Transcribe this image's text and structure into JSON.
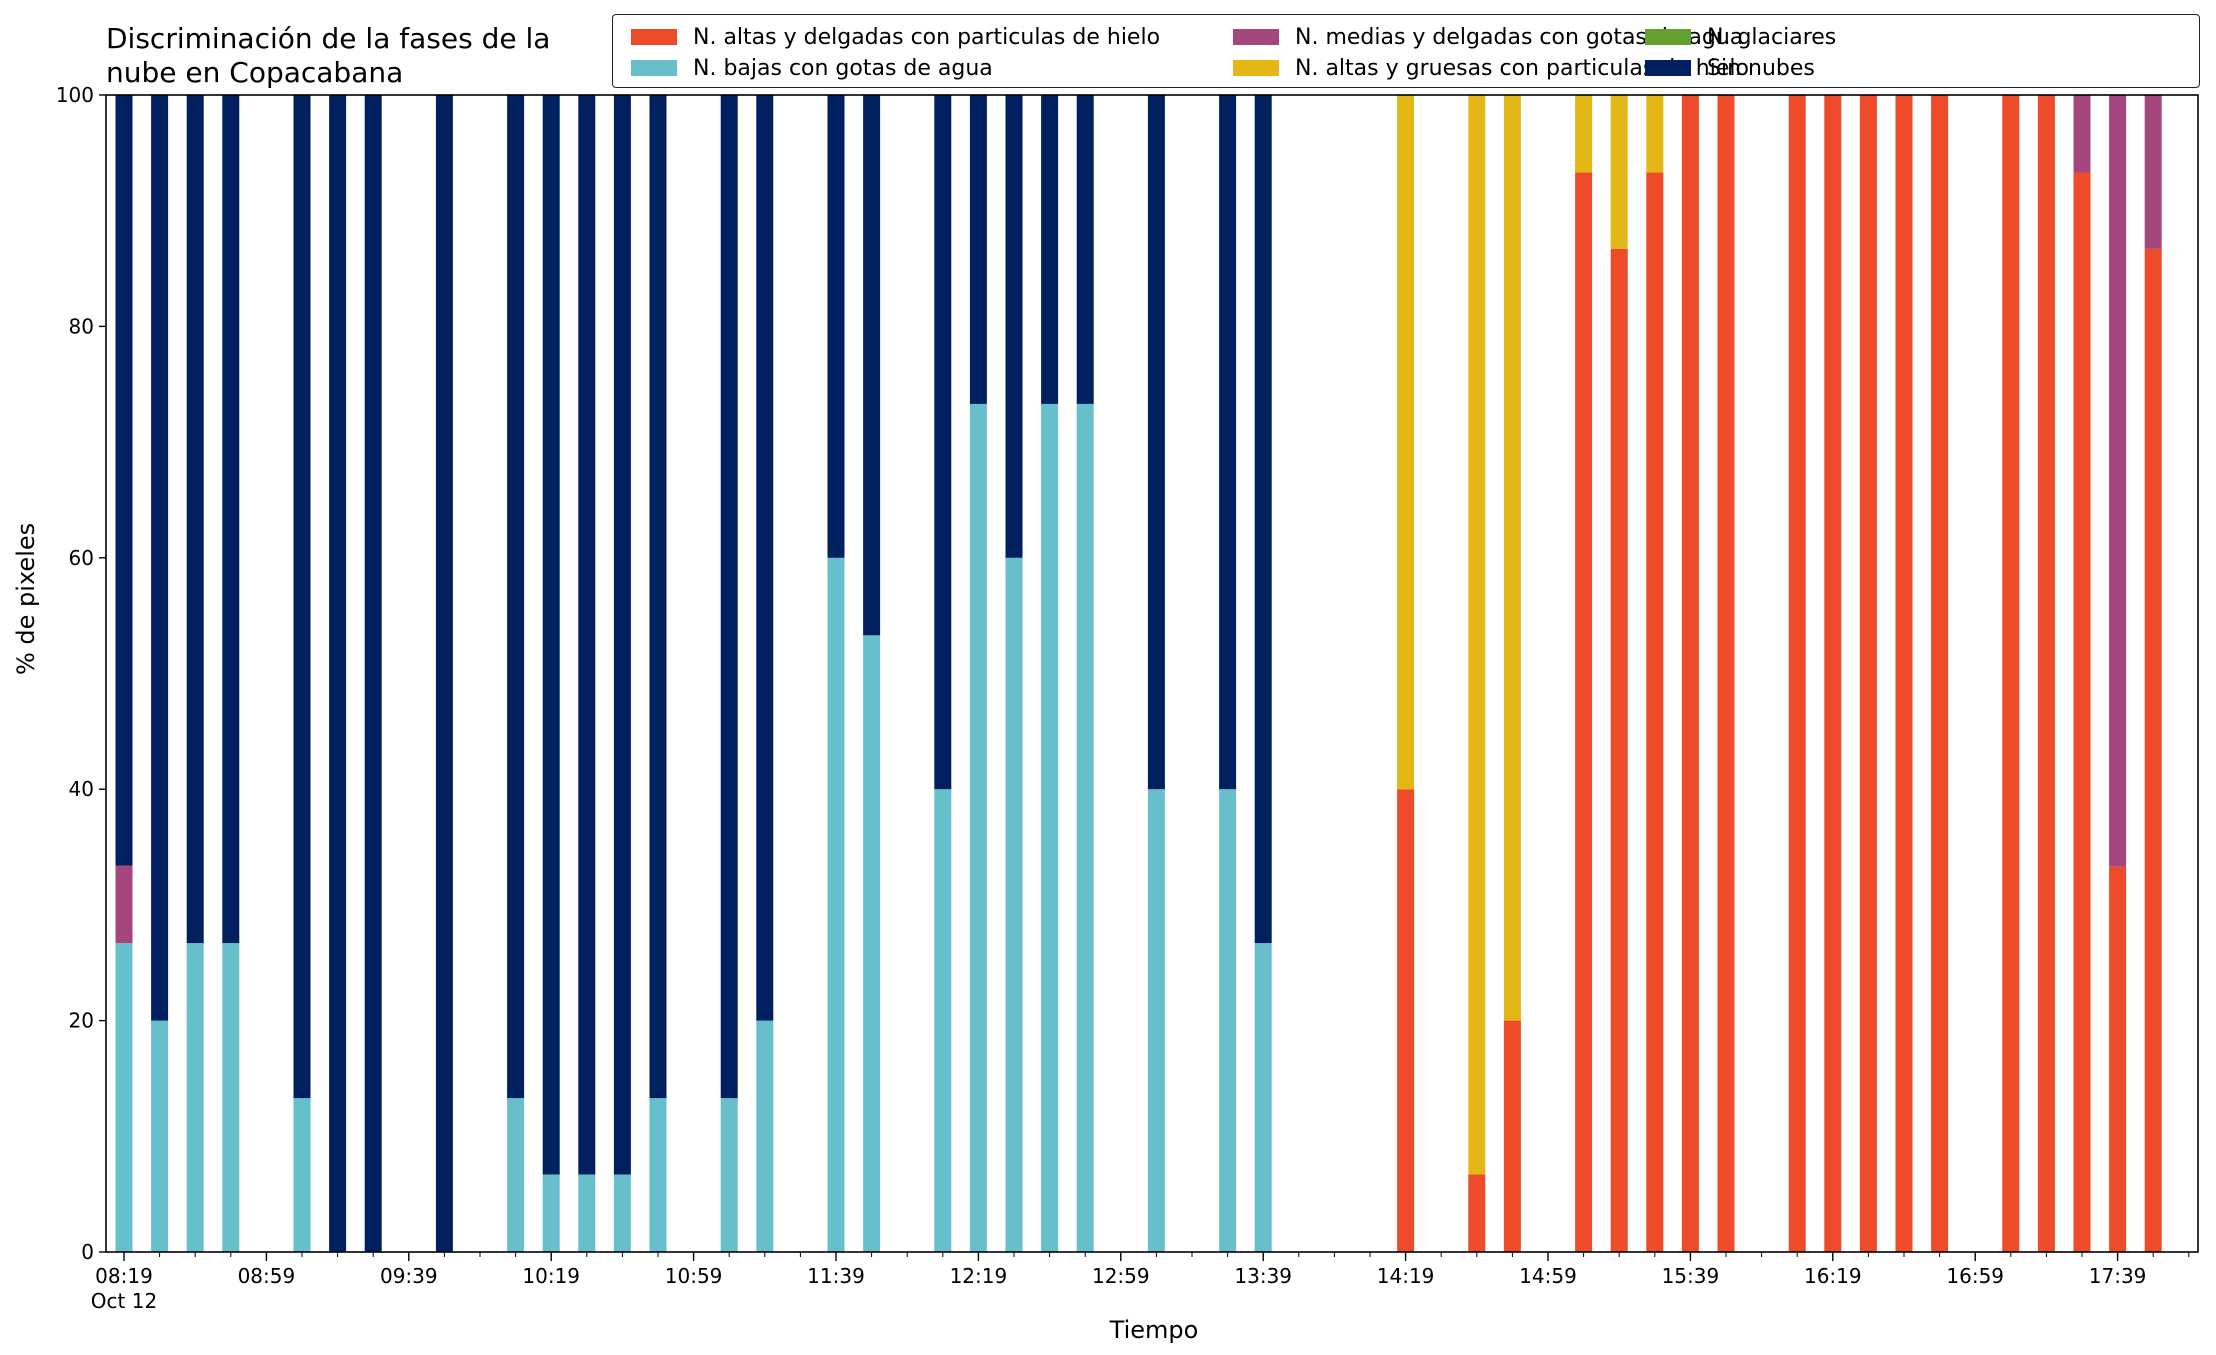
{
  "chart_data": {
    "type": "bar",
    "stacked": true,
    "title_lines": [
      "Discriminación de la fases de la",
      "nube en Copacabana"
    ],
    "xlabel": "Tiempo",
    "ylabel": "% de pixeles",
    "ylim": [
      0,
      100
    ],
    "yticks": [
      0,
      20,
      40,
      60,
      80,
      100
    ],
    "xtick_labels": [
      "08:19",
      "08:59",
      "09:39",
      "10:19",
      "10:59",
      "11:39",
      "12:19",
      "12:59",
      "13:39",
      "14:19",
      "14:59",
      "15:39",
      "16:19",
      "16:59",
      "17:39"
    ],
    "xtick_sublabel": "Oct 12",
    "x_start": "08:19",
    "x_step_minutes": 10,
    "x_count": 59,
    "grid": false,
    "legend_position": "top-right",
    "legend_columns": 3,
    "series": [
      {
        "name": "N. altas y delgadas con particulas de hielo",
        "color": "#ee4b2b"
      },
      {
        "name": "N. altas y gruesas con particulas de hielo",
        "color": "#e3b816"
      },
      {
        "name": "N. bajas con gotas de agua",
        "color": "#68bfcc"
      },
      {
        "name": "N. glaciares",
        "color": "#62a030"
      },
      {
        "name": "N. medias y delgadas con gotas de agua",
        "color": "#a5467d"
      },
      {
        "name": "Sin nubes",
        "color": "#00205f"
      }
    ],
    "legend_order": [
      0,
      2,
      4,
      1,
      3,
      5
    ],
    "bars": [
      {
        "time": "08:19",
        "values": [
          0,
          0,
          26.7,
          0,
          6.7,
          66.6
        ]
      },
      {
        "time": "08:29",
        "values": [
          0,
          0,
          20,
          0,
          0,
          80
        ]
      },
      {
        "time": "08:39",
        "values": [
          0,
          0,
          26.7,
          0,
          0,
          73.3
        ]
      },
      {
        "time": "08:49",
        "values": [
          0,
          0,
          26.7,
          0,
          0,
          73.3
        ]
      },
      {
        "time": "09:09",
        "values": [
          0,
          0,
          13.3,
          0,
          0,
          86.7
        ]
      },
      {
        "time": "09:19",
        "values": [
          0,
          0,
          0,
          0,
          0,
          100
        ]
      },
      {
        "time": "09:29",
        "values": [
          0,
          0,
          0,
          0,
          0,
          100
        ]
      },
      {
        "time": "09:49",
        "values": [
          0,
          0,
          0,
          0,
          0,
          100
        ]
      },
      {
        "time": "10:09",
        "values": [
          0,
          0,
          13.3,
          0,
          0,
          86.7
        ]
      },
      {
        "time": "10:19",
        "values": [
          0,
          0,
          6.7,
          0,
          0,
          93.3
        ]
      },
      {
        "time": "10:29",
        "values": [
          0,
          0,
          6.7,
          0,
          0,
          93.3
        ]
      },
      {
        "time": "10:39",
        "values": [
          0,
          0,
          6.7,
          0,
          0,
          93.3
        ]
      },
      {
        "time": "10:49",
        "values": [
          0,
          0,
          13.3,
          0,
          0,
          86.7
        ]
      },
      {
        "time": "11:09",
        "values": [
          0,
          0,
          13.3,
          0,
          0,
          86.7
        ]
      },
      {
        "time": "11:19",
        "values": [
          0,
          0,
          20,
          0,
          0,
          80
        ]
      },
      {
        "time": "11:39",
        "values": [
          0,
          0,
          60,
          0,
          0,
          40
        ]
      },
      {
        "time": "11:49",
        "values": [
          0,
          0,
          53.3,
          0,
          0,
          46.7
        ]
      },
      {
        "time": "12:09",
        "values": [
          0,
          0,
          40,
          0,
          0,
          60
        ]
      },
      {
        "time": "12:19",
        "values": [
          0,
          0,
          73.3,
          0,
          0,
          26.7
        ]
      },
      {
        "time": "12:29",
        "values": [
          0,
          0,
          60,
          0,
          0,
          40
        ]
      },
      {
        "time": "12:39",
        "values": [
          0,
          0,
          73.3,
          0,
          0,
          26.7
        ]
      },
      {
        "time": "12:49",
        "values": [
          0,
          0,
          73.3,
          0,
          0,
          26.7
        ]
      },
      {
        "time": "13:09",
        "values": [
          0,
          0,
          40,
          0,
          0,
          60
        ]
      },
      {
        "time": "13:29",
        "values": [
          0,
          0,
          40,
          0,
          0,
          60
        ]
      },
      {
        "time": "13:39",
        "values": [
          0,
          0,
          26.7,
          0,
          0,
          73.3
        ]
      },
      {
        "time": "14:19",
        "values": [
          40,
          60,
          0,
          0,
          0,
          0
        ]
      },
      {
        "time": "14:39",
        "values": [
          6.7,
          93.3,
          0,
          0,
          0,
          0
        ]
      },
      {
        "time": "14:49",
        "values": [
          20,
          80,
          0,
          0,
          0,
          0
        ]
      },
      {
        "time": "15:09",
        "values": [
          93.3,
          6.7,
          0,
          0,
          0,
          0
        ]
      },
      {
        "time": "15:19",
        "values": [
          86.7,
          13.3,
          0,
          0,
          0,
          0
        ]
      },
      {
        "time": "15:29",
        "values": [
          93.3,
          6.7,
          0,
          0,
          0,
          0
        ]
      },
      {
        "time": "15:39",
        "values": [
          100,
          0,
          0,
          0,
          0,
          0
        ]
      },
      {
        "time": "15:49",
        "values": [
          100,
          0,
          0,
          0,
          0,
          0
        ]
      },
      {
        "time": "16:09",
        "values": [
          100,
          0,
          0,
          0,
          0,
          0
        ]
      },
      {
        "time": "16:19",
        "values": [
          100,
          0,
          0,
          0,
          0,
          0
        ]
      },
      {
        "time": "16:29",
        "values": [
          100,
          0,
          0,
          0,
          0,
          0
        ]
      },
      {
        "time": "16:39",
        "values": [
          100,
          0,
          0,
          0,
          0,
          0
        ]
      },
      {
        "time": "16:49",
        "values": [
          100,
          0,
          0,
          0,
          0,
          0
        ]
      },
      {
        "time": "17:09",
        "values": [
          100,
          0,
          0,
          0,
          0,
          0
        ]
      },
      {
        "time": "17:19",
        "values": [
          100,
          0,
          0,
          0,
          0,
          0
        ]
      },
      {
        "time": "17:29",
        "values": [
          93.3,
          0,
          0,
          0,
          6.7,
          0
        ]
      },
      {
        "time": "17:39",
        "values": [
          33.3,
          0,
          0,
          0,
          66.7,
          0
        ]
      },
      {
        "time": "17:49",
        "values": [
          86.7,
          0,
          0,
          0,
          13.3,
          0
        ]
      }
    ]
  }
}
